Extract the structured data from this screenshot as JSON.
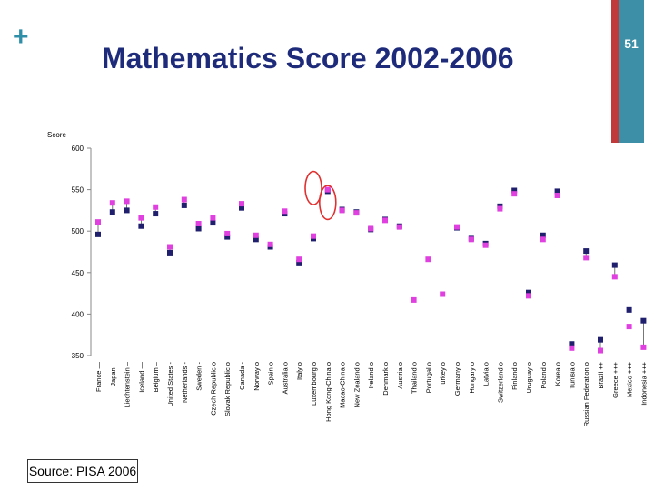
{
  "slide": {
    "title": "Mathematics Score 2002-2006",
    "page_number": "51",
    "plus_sign": "+",
    "source": "Source: PISA 2006",
    "colors": {
      "accent_red": "#c0393b",
      "accent_teal": "#3c8fa6",
      "title": "#1d2b7a"
    }
  },
  "chart_data": {
    "type": "scatter",
    "ylabel": "Score",
    "ylim": [
      350,
      600
    ],
    "yticks": [
      350,
      400,
      450,
      500,
      550,
      600
    ],
    "grid": false,
    "categories": [
      "France —",
      "Japan –",
      "Liechtenstein –",
      "Iceland —",
      "Belgium –",
      "United States -",
      "Netherlands -",
      "Sweden -",
      "Czech Republic o",
      "Slovak Republic o",
      "Canada -",
      "Norway o",
      "Spain o",
      "Australia o",
      "Italy o",
      "Luxembourg o",
      "Hong Kong-China o",
      "Macao-China o",
      "New Zealand o",
      "Ireland o",
      "Denmark o",
      "Austria o",
      "Thailand o",
      "Portugal o",
      "Turkey o",
      "Germany o",
      "Hungary o",
      "Latvia o",
      "Switzerland o",
      "Finland o",
      "Uruguay o",
      "Poland o",
      "Korea o",
      "Tunisia o",
      "Russian Federation o",
      "Brazil ++",
      "Greece +++",
      "Mexico +++",
      "Indonesia +++"
    ],
    "series": [
      {
        "marker": "square",
        "color": "#1f1f6e",
        "values": [
          496,
          523,
          525,
          506,
          521,
          474,
          531,
          503,
          510,
          493,
          528,
          490,
          481,
          521,
          462,
          491,
          548,
          526,
          523,
          502,
          514,
          506,
          null,
          null,
          null,
          504,
          491,
          485,
          530,
          549,
          426,
          495,
          548,
          364,
          476,
          369,
          459,
          405,
          392
        ]
      },
      {
        "marker": "square",
        "color": "#e040e0",
        "values": [
          511,
          534,
          536,
          516,
          529,
          481,
          538,
          509,
          516,
          497,
          533,
          495,
          484,
          524,
          466,
          494,
          550,
          525,
          522,
          503,
          513,
          505,
          417,
          466,
          424,
          505,
          490,
          483,
          527,
          545,
          422,
          490,
          543,
          359,
          468,
          356,
          445,
          385,
          360
        ]
      }
    ],
    "annotations": [
      {
        "shape": "ellipse",
        "color": "#e03030",
        "category": "Luxembourg o",
        "range": [
          532,
          572
        ]
      },
      {
        "shape": "ellipse",
        "color": "#e03030",
        "category": "Hong Kong-China o",
        "range": [
          514,
          555
        ]
      }
    ]
  }
}
